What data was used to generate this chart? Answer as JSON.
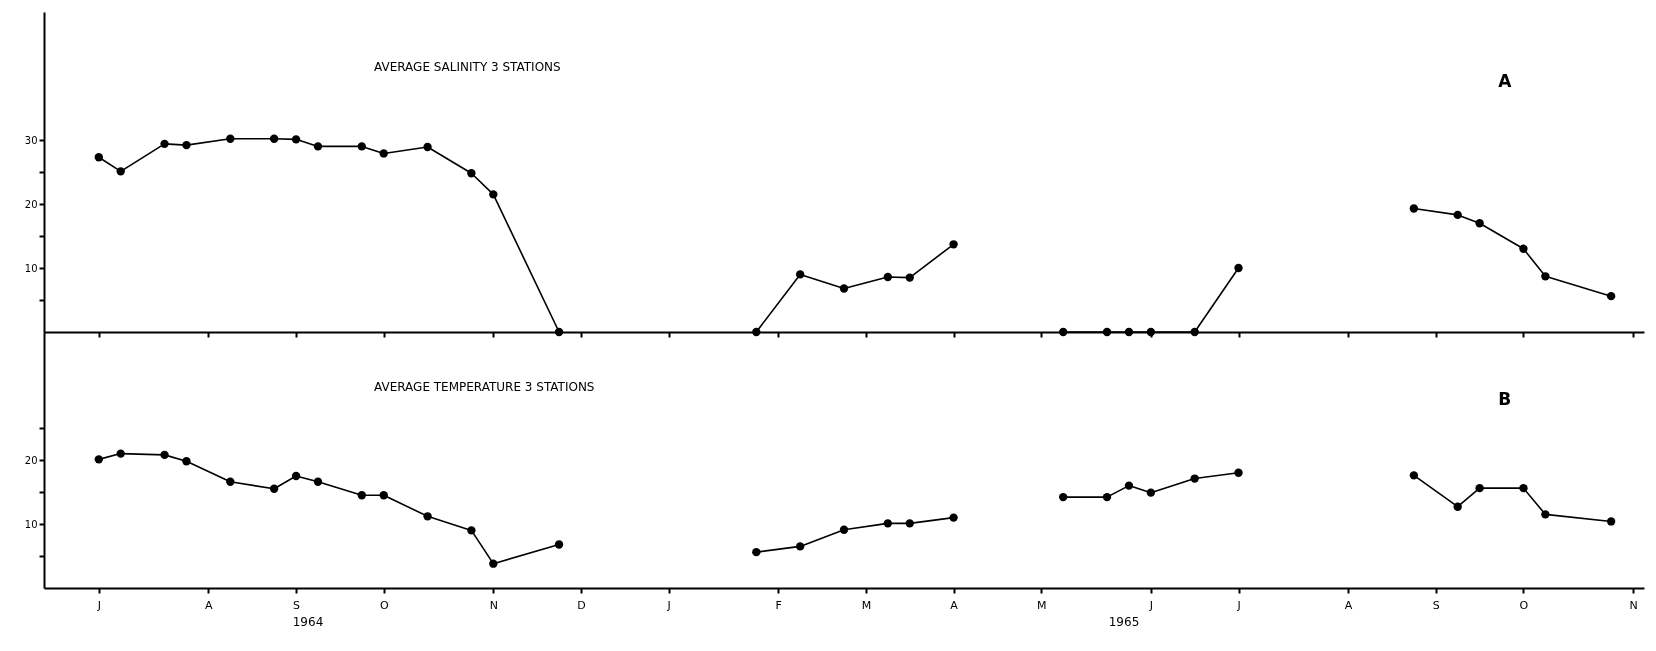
{
  "chart_data": [
    {
      "type": "line",
      "title": "AVERAGE SALINITY 3 STATIONS",
      "annotations": [
        "A"
      ],
      "categories": [
        null,
        null,
        null,
        null,
        null,
        null,
        null,
        null,
        null,
        null,
        null,
        null,
        null,
        null,
        null,
        null,
        null,
        null,
        null,
        null,
        null,
        null,
        null,
        null,
        null,
        null,
        null,
        null,
        null,
        null,
        null,
        null,
        null,
        null,
        null,
        null,
        null,
        null,
        null,
        null,
        null,
        null,
        null,
        null,
        null,
        null,
        null,
        null,
        null,
        null,
        null,
        null,
        null,
        null,
        null,
        null,
        null,
        null,
        null,
        null,
        null,
        null,
        null,
        null,
        null,
        null,
        null,
        null,
        null,
        null,
        null,
        null,
        null
      ],
      "series": [
        {
          "color": "#000000",
          "values": [
            null,
            null,
            27.3,
            25.1,
            null,
            29.4,
            29.2,
            null,
            30.2,
            null,
            30.2,
            30.1,
            29.0,
            null,
            29.0,
            27.9,
            null,
            28.9,
            null,
            24.8,
            21.5,
            null,
            null,
            0,
            null,
            null,
            null,
            null,
            null,
            null,
            null,
            null,
            null,
            null,
            null,
            null,
            null,
            null,
            null,
            null,
            null,
            null,
            null,
            null,
            null,
            null,
            null,
            null,
            null,
            null,
            null,
            null,
            null,
            null,
            null,
            null,
            null,
            null,
            null,
            null,
            null,
            null,
            null,
            null,
            null,
            null,
            null,
            null,
            null,
            null,
            null,
            null,
            null
          ]
        },
        {
          "color": "#000000",
          "values": [
            null,
            null,
            null,
            null,
            null,
            null,
            null,
            null,
            null,
            null,
            null,
            null,
            null,
            null,
            null,
            null,
            null,
            null,
            null,
            null,
            null,
            null,
            null,
            null,
            null,
            null,
            null,
            null,
            null,
            null,
            null,
            null,
            0,
            null,
            9.0,
            null,
            6.8,
            null,
            8.6,
            8.5,
            null,
            13.7,
            null,
            null,
            null,
            null,
            null,
            null,
            null,
            null,
            null,
            null,
            null,
            null,
            null,
            null,
            null,
            null,
            null,
            null,
            null,
            null,
            null,
            null,
            null,
            null,
            null,
            null,
            null,
            null,
            null,
            null,
            null
          ]
        },
        {
          "color": "#000000",
          "values": [
            null,
            null,
            null,
            null,
            null,
            null,
            null,
            null,
            null,
            null,
            null,
            null,
            null,
            null,
            null,
            null,
            null,
            null,
            null,
            null,
            null,
            null,
            null,
            null,
            null,
            null,
            null,
            null,
            null,
            null,
            null,
            null,
            null,
            null,
            null,
            null,
            null,
            null,
            null,
            null,
            null,
            null,
            null,
            null,
            null,
            null,
            0,
            null,
            0,
            0,
            0,
            null,
            0,
            null,
            10.0,
            null,
            null,
            null,
            null,
            null,
            null,
            null,
            null,
            null,
            null,
            null,
            null,
            null,
            null,
            null,
            null,
            null,
            null
          ]
        },
        {
          "color": "#000000",
          "values": [
            null,
            null,
            null,
            null,
            null,
            null,
            null,
            null,
            null,
            null,
            null,
            null,
            null,
            null,
            null,
            null,
            null,
            null,
            null,
            null,
            null,
            null,
            null,
            null,
            null,
            null,
            null,
            null,
            null,
            null,
            null,
            null,
            null,
            null,
            null,
            null,
            null,
            null,
            null,
            null,
            null,
            null,
            null,
            null,
            null,
            null,
            null,
            null,
            null,
            null,
            null,
            null,
            null,
            null,
            null,
            null,
            null,
            null,
            null,
            null,
            null,
            null,
            19.3,
            null,
            18.3,
            17.0,
            null,
            13.0,
            8.7,
            null,
            null,
            5.6,
            null
          ]
        }
      ],
      "ylim": [
        0,
        50
      ],
      "yticks": [
        {
          "value": 5,
          "label": null
        },
        10,
        {
          "value": 15,
          "label": null
        },
        20,
        {
          "value": 25,
          "label": null
        },
        30
      ],
      "tick_labels": "y",
      "marker": "circle",
      "line_style": "solid"
    },
    {
      "type": "line",
      "title": "AVERAGE TEMPERATURE 3 STATIONS",
      "annotations": [
        "B",
        "1964",
        "1965"
      ],
      "categories": [
        null,
        null,
        "J",
        null,
        null,
        null,
        null,
        "A",
        null,
        null,
        null,
        "S",
        null,
        null,
        null,
        "O",
        null,
        null,
        null,
        null,
        "N",
        null,
        null,
        null,
        "D",
        null,
        null,
        null,
        "J",
        null,
        null,
        null,
        null,
        "F",
        null,
        null,
        null,
        "M",
        null,
        null,
        null,
        "A",
        null,
        null,
        null,
        "M",
        null,
        null,
        null,
        null,
        "J",
        null,
        null,
        null,
        "J",
        null,
        null,
        null,
        null,
        "A",
        null,
        null,
        null,
        "S",
        null,
        null,
        null,
        "O",
        null,
        null,
        null,
        null,
        "N"
      ],
      "series": [
        {
          "color": "#000000",
          "values": [
            null,
            null,
            20.1,
            21.0,
            null,
            20.8,
            19.8,
            null,
            16.6,
            null,
            15.5,
            17.5,
            16.6,
            null,
            14.5,
            14.5,
            null,
            11.2,
            null,
            9.0,
            3.8,
            null,
            null,
            6.8,
            null,
            null,
            null,
            null,
            null,
            null,
            null,
            null,
            null,
            null,
            null,
            null,
            null,
            null,
            null,
            null,
            null,
            null,
            null,
            null,
            null,
            null,
            null,
            null,
            null,
            null,
            null,
            null,
            null,
            null,
            null,
            null,
            null,
            null,
            null,
            null,
            null,
            null,
            null,
            null,
            null,
            null,
            null,
            null,
            null,
            null,
            null,
            null,
            null
          ]
        },
        {
          "color": "#000000",
          "values": [
            null,
            null,
            null,
            null,
            null,
            null,
            null,
            null,
            null,
            null,
            null,
            null,
            null,
            null,
            null,
            null,
            null,
            null,
            null,
            null,
            null,
            null,
            null,
            null,
            null,
            null,
            null,
            null,
            null,
            null,
            null,
            null,
            5.6,
            null,
            6.5,
            null,
            9.1,
            null,
            10.1,
            10.1,
            null,
            11.0,
            null,
            null,
            null,
            null,
            null,
            null,
            null,
            null,
            null,
            null,
            null,
            null,
            null,
            null,
            null,
            null,
            null,
            null,
            null,
            null,
            null,
            null,
            null,
            null,
            null,
            null,
            null,
            null,
            null,
            null,
            null
          ]
        },
        {
          "color": "#000000",
          "values": [
            null,
            null,
            null,
            null,
            null,
            null,
            null,
            null,
            null,
            null,
            null,
            null,
            null,
            null,
            null,
            null,
            null,
            null,
            null,
            null,
            null,
            null,
            null,
            null,
            null,
            null,
            null,
            null,
            null,
            null,
            null,
            null,
            null,
            null,
            null,
            null,
            null,
            null,
            null,
            null,
            null,
            null,
            null,
            null,
            null,
            null,
            14.2,
            null,
            14.2,
            16.0,
            14.9,
            null,
            17.1,
            null,
            18.0,
            null,
            null,
            null,
            null,
            null,
            null,
            null,
            null,
            null,
            null,
            null,
            null,
            null,
            null,
            null,
            null,
            null,
            null
          ]
        },
        {
          "color": "#000000",
          "values": [
            null,
            null,
            null,
            null,
            null,
            null,
            null,
            null,
            null,
            null,
            null,
            null,
            null,
            null,
            null,
            null,
            null,
            null,
            null,
            null,
            null,
            null,
            null,
            null,
            null,
            null,
            null,
            null,
            null,
            null,
            null,
            null,
            null,
            null,
            null,
            null,
            null,
            null,
            null,
            null,
            null,
            null,
            null,
            null,
            null,
            null,
            null,
            null,
            null,
            null,
            null,
            null,
            null,
            null,
            null,
            null,
            null,
            null,
            null,
            null,
            null,
            null,
            17.6,
            null,
            12.7,
            15.6,
            null,
            15.6,
            11.5,
            null,
            null,
            10.4,
            null
          ]
        }
      ],
      "ylim": [
        0,
        40
      ],
      "yticks": [
        {
          "value": 5,
          "label": null
        },
        10,
        {
          "value": 15,
          "label": null
        },
        20,
        {
          "value": 25,
          "label": null
        }
      ],
      "marker": "circle",
      "line_style": "solid"
    }
  ]
}
